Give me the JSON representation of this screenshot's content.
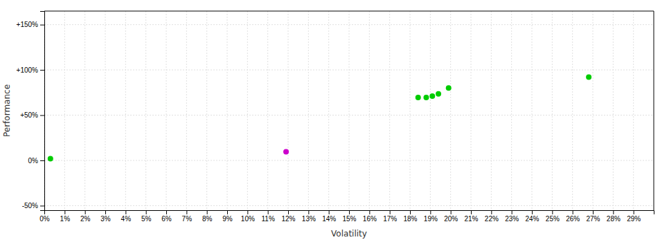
{
  "chart_data": {
    "type": "scatter",
    "xlabel": "Volatility",
    "ylabel": "Performance",
    "x": [
      0.003,
      0.119,
      0.184,
      0.188,
      0.191,
      0.194,
      0.199,
      0.268
    ],
    "values": [
      0.02,
      0.095,
      0.695,
      0.695,
      0.71,
      0.735,
      0.8,
      0.92
    ],
    "colors": [
      "#00cc00",
      "#cc00cc",
      "#00cc00",
      "#00cc00",
      "#00cc00",
      "#00cc00",
      "#00cc00",
      "#00cc00"
    ],
    "xlim": [
      0,
      0.3
    ],
    "ylim": [
      -0.55,
      1.65
    ],
    "xticks": [
      {
        "value": 0.0,
        "label": "0%"
      },
      {
        "value": 0.01,
        "label": "1%"
      },
      {
        "value": 0.02,
        "label": "2%"
      },
      {
        "value": 0.03,
        "label": "3%"
      },
      {
        "value": 0.04,
        "label": "4%"
      },
      {
        "value": 0.05,
        "label": "5%"
      },
      {
        "value": 0.06,
        "label": "6%"
      },
      {
        "value": 0.07,
        "label": "7%"
      },
      {
        "value": 0.08,
        "label": "8%"
      },
      {
        "value": 0.09,
        "label": "9%"
      },
      {
        "value": 0.1,
        "label": "10%"
      },
      {
        "value": 0.11,
        "label": "11%"
      },
      {
        "value": 0.12,
        "label": "12%"
      },
      {
        "value": 0.13,
        "label": "13%"
      },
      {
        "value": 0.14,
        "label": "14%"
      },
      {
        "value": 0.15,
        "label": "15%"
      },
      {
        "value": 0.16,
        "label": "16%"
      },
      {
        "value": 0.17,
        "label": "17%"
      },
      {
        "value": 0.18,
        "label": "18%"
      },
      {
        "value": 0.19,
        "label": "19%"
      },
      {
        "value": 0.2,
        "label": "20%"
      },
      {
        "value": 0.21,
        "label": "21%"
      },
      {
        "value": 0.22,
        "label": "22%"
      },
      {
        "value": 0.23,
        "label": "23%"
      },
      {
        "value": 0.24,
        "label": "24%"
      },
      {
        "value": 0.25,
        "label": "25%"
      },
      {
        "value": 0.26,
        "label": "26%"
      },
      {
        "value": 0.27,
        "label": "27%"
      },
      {
        "value": 0.28,
        "label": "28%"
      },
      {
        "value": 0.29,
        "label": "29%"
      }
    ],
    "yticks": [
      {
        "value": -0.5,
        "label": "-50%"
      },
      {
        "value": 0.0,
        "label": "0%"
      },
      {
        "value": 0.5,
        "label": "+50%"
      },
      {
        "value": 1.0,
        "label": "+100%"
      },
      {
        "value": 1.5,
        "label": "+150%"
      }
    ],
    "grid": true
  }
}
